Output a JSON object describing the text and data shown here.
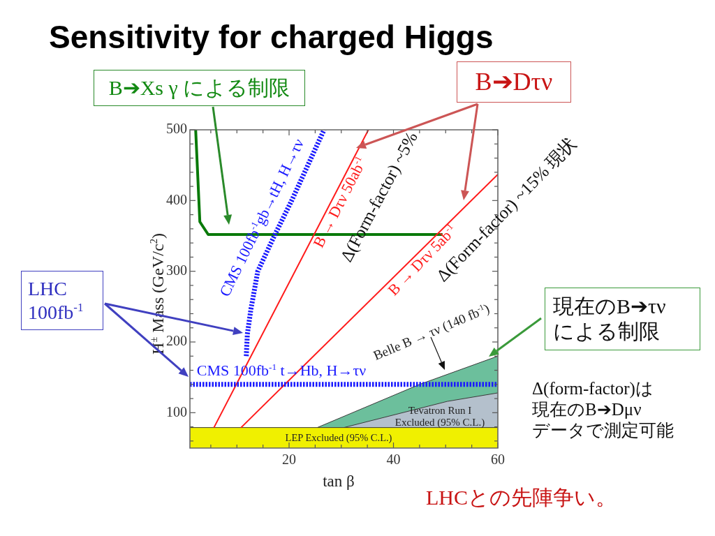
{
  "chart_data": {
    "type": "line",
    "title": "Sensitivity for charged Higgs",
    "xlabel": "tan β",
    "ylabel": "H$^{±}$ Mass (GeV/c$^{2}$)",
    "xlim": [
      1,
      60
    ],
    "xticks": [
      {
        "value": 5,
        "label": null
      },
      {
        "value": 10,
        "label": null
      },
      {
        "value": 15,
        "label": null
      },
      20,
      {
        "value": 25,
        "label": null
      },
      {
        "value": 30,
        "label": null
      },
      {
        "value": 35,
        "label": null
      },
      40,
      {
        "value": 45,
        "label": null
      },
      {
        "value": 50,
        "label": null
      },
      {
        "value": 55,
        "label": null
      },
      60
    ],
    "ylim": [
      50,
      500
    ],
    "yticks": [
      {
        "value": 60,
        "label": null
      },
      {
        "value": 80,
        "label": null
      },
      100,
      {
        "value": 120,
        "label": null
      },
      {
        "value": 140,
        "label": null
      },
      {
        "value": 160,
        "label": null
      },
      {
        "value": 180,
        "label": null
      },
      200,
      {
        "value": 220,
        "label": null
      },
      {
        "value": 240,
        "label": null
      },
      {
        "value": 260,
        "label": null
      },
      {
        "value": 280,
        "label": null
      },
      300,
      {
        "value": 320,
        "label": null
      },
      {
        "value": 340,
        "label": null
      },
      {
        "value": 360,
        "label": null
      },
      {
        "value": 380,
        "label": null
      },
      400,
      {
        "value": 420,
        "label": null
      },
      {
        "value": 440,
        "label": null
      },
      {
        "value": 460,
        "label": null
      },
      {
        "value": 480,
        "label": null
      },
      500
    ],
    "series": [
      {
        "name": "LEP Excluded (95% C.L.)",
        "type": "area",
        "color": "#f0f000",
        "x": [
          1,
          60
        ],
        "values": [
          79,
          79
        ]
      },
      {
        "name": "Tevatron Run I Excluded (95% C.L.)",
        "type": "area",
        "color": "#b4c0cc",
        "x": [
          30.5,
          50.3,
          60
        ],
        "values": [
          79,
          116,
          128
        ]
      },
      {
        "name": "Belle B → τν (140 fb$^{-1}$)",
        "type": "area",
        "color": "#6cbf9c",
        "x": [
          25.4,
          45,
          60
        ],
        "values": [
          79,
          140,
          180
        ]
      },
      {
        "name": "CMS 100fb$^{-1}$ t→Hb, H→τν",
        "color": "#1a1aff",
        "line_style": "dotted",
        "x": [
          1,
          60
        ],
        "values": [
          140,
          140
        ]
      },
      {
        "name": "CMS 100fb$^{-1}$gb→tH, H→τν",
        "color": "#1a1aff",
        "line_style": "dotted",
        "x": [
          11.8,
          12.0,
          12.7,
          13.1,
          14.0,
          17.3,
          20.5,
          26.7
        ],
        "values": [
          180,
          211,
          247,
          263,
          300,
          352,
          400,
          500
        ]
      },
      {
        "name": "B → Dτν 50ab$^{-1}$",
        "color": "#ff1a1a",
        "x": [
          5.6,
          35.2
        ],
        "values": [
          79,
          500
        ]
      },
      {
        "name": "B → Dτν 5ab$^{-1}$",
        "color": "#ff1a1a",
        "x": [
          10.8,
          60
        ],
        "values": [
          79,
          437
        ]
      },
      {
        "color": "#0a7a0a",
        "x": [
          2.1,
          2.9,
          4.5,
          49.4
        ],
        "values": [
          500,
          370,
          352,
          352
        ]
      }
    ],
    "annotations": [
      "B➔Xs γ による制限",
      "B➔Dτν",
      "LHC 100fb$^{-1}$",
      "現在のB➔τνによる制限",
      "Δ(form-factor)は現在のB➔Dμνデータで測定可能",
      "LHCとの先陣争い。",
      "Δ(Form-factor) ~5%",
      "Δ(Form-factor) ~15% 現状"
    ]
  }
}
